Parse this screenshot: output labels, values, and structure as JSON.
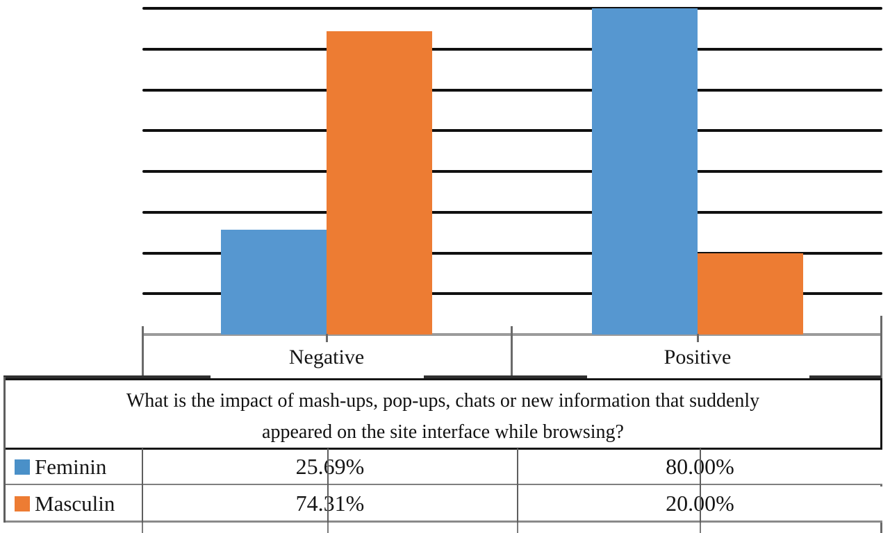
{
  "chart_data": {
    "type": "bar",
    "title": "",
    "categories": [
      "Negative",
      "Positive"
    ],
    "series": [
      {
        "name": "Feminin",
        "color": "#5697d0",
        "values": [
          25.69,
          80.0
        ]
      },
      {
        "name": "Masculin",
        "color": "#ed7c33",
        "values": [
          74.31,
          20.0
        ]
      }
    ],
    "xlabel": "",
    "ylabel": "",
    "ylim": [
      0,
      80
    ],
    "gridline_step": 10,
    "grid": true,
    "y_tick_labels_visible": false,
    "legend_position": "data-table-left"
  },
  "axis": {
    "category_labels": {
      "negative": "Negative",
      "positive": "Positive"
    }
  },
  "table": {
    "question_line1": "What is the impact of mash-ups, pop-ups, chats or new information that suddenly",
    "question_line2": "appeared on the site interface while browsing?",
    "rows": [
      {
        "label": "Feminin",
        "swatch_color": "#4a90c8",
        "values": [
          "25.69%",
          "80.00%"
        ]
      },
      {
        "label": "Masculin",
        "swatch_color": "#ed7c33",
        "values": [
          "74.31%",
          "20.00%"
        ]
      }
    ]
  },
  "colors": {
    "gridline": "#101010",
    "axis_line": "#9b9b9b",
    "table_border": "#161616"
  }
}
